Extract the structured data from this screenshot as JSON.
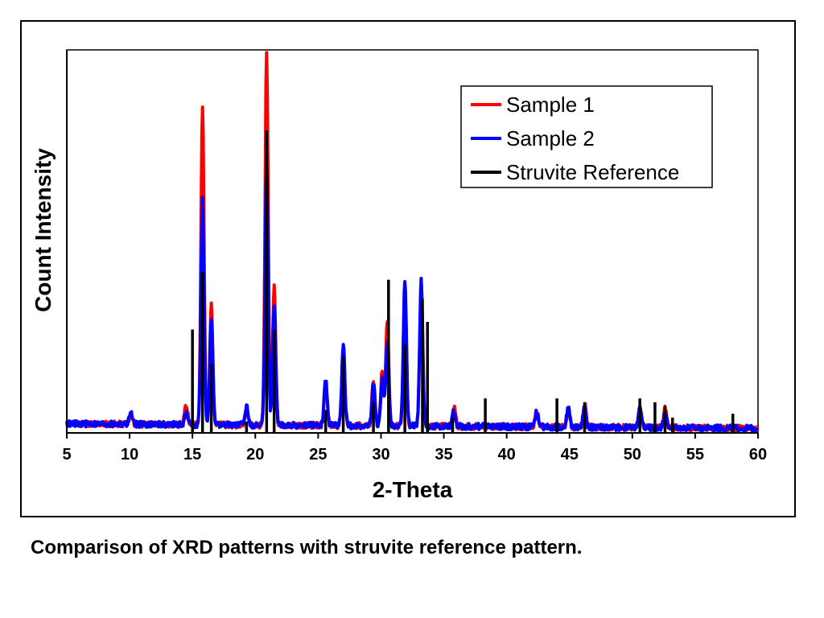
{
  "chart_data": {
    "type": "line",
    "title": "",
    "xlabel": "2-Theta",
    "ylabel": "Count Intensity",
    "xlim": [
      5,
      60
    ],
    "ylim": [
      0,
      100
    ],
    "x_ticks": [
      5,
      10,
      15,
      20,
      25,
      30,
      35,
      40,
      45,
      50,
      55,
      60
    ],
    "y_ticks_shown": false,
    "grid": false,
    "legend_position": "top-right",
    "colors": {
      "sample1": "#ff0000",
      "sample2": "#0000ff",
      "reference": "#000000"
    },
    "series": [
      {
        "name": "Sample 1",
        "color": "#ff0000",
        "kind": "continuous",
        "peaks": [
          [
            10.1,
            3
          ],
          [
            14.5,
            5
          ],
          [
            15.8,
            83
          ],
          [
            16.5,
            31
          ],
          [
            19.3,
            5
          ],
          [
            20.9,
            97
          ],
          [
            21.5,
            36
          ],
          [
            25.6,
            11
          ],
          [
            27.0,
            20
          ],
          [
            29.4,
            12
          ],
          [
            30.1,
            14
          ],
          [
            30.5,
            27
          ],
          [
            31.9,
            35
          ],
          [
            33.2,
            36
          ],
          [
            35.8,
            5
          ],
          [
            42.4,
            4
          ],
          [
            44.9,
            5
          ],
          [
            46.2,
            6
          ],
          [
            50.6,
            5
          ],
          [
            52.6,
            5
          ]
        ]
      },
      {
        "name": "Sample 2",
        "color": "#0000ff",
        "kind": "continuous",
        "peaks": [
          [
            10.1,
            3
          ],
          [
            14.5,
            3
          ],
          [
            15.8,
            59
          ],
          [
            16.5,
            27
          ],
          [
            19.3,
            5
          ],
          [
            20.9,
            68
          ],
          [
            21.5,
            31
          ],
          [
            25.6,
            12
          ],
          [
            27.0,
            21
          ],
          [
            29.4,
            11
          ],
          [
            30.1,
            12
          ],
          [
            30.5,
            22
          ],
          [
            31.9,
            38
          ],
          [
            33.2,
            38
          ],
          [
            35.8,
            4
          ],
          [
            42.4,
            4
          ],
          [
            44.9,
            5
          ],
          [
            46.2,
            5
          ],
          [
            50.6,
            5
          ],
          [
            52.6,
            4
          ]
        ]
      },
      {
        "name": "Struvite Reference",
        "color": "#000000",
        "kind": "sticks",
        "x": [
          15.0,
          15.8,
          16.5,
          19.3,
          20.9,
          21.5,
          25.6,
          27.0,
          29.4,
          30.6,
          31.9,
          33.3,
          33.7,
          35.7,
          38.3,
          44.0,
          46.2,
          50.6,
          51.8,
          52.6,
          53.2,
          58.0
        ],
        "values": [
          27,
          42,
          18,
          3,
          79,
          27,
          6,
          20,
          8,
          40,
          23,
          35,
          29,
          4,
          9,
          9,
          8,
          9,
          8,
          7,
          4,
          5
        ]
      }
    ]
  },
  "caption": "Comparison of XRD patterns with struvite reference pattern."
}
